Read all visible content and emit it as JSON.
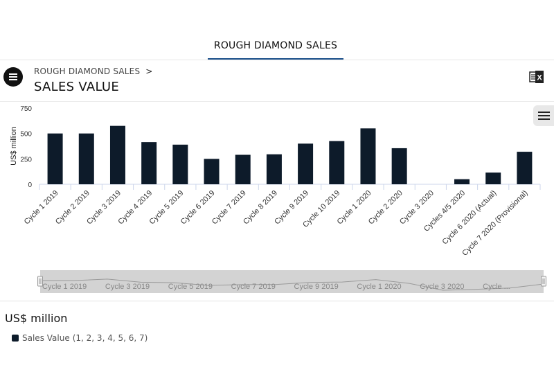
{
  "tabs": {
    "active_label": "ROUGH DIAMOND SALES"
  },
  "header": {
    "breadcrumb": "ROUGH DIAMOND SALES",
    "breadcrumb_separator": ">",
    "title": "SALES VALUE",
    "menu_icon": "hamburger-menu-icon",
    "export_icon": "excel-export-icon"
  },
  "chart_menu_icon": "hamburger-menu-icon",
  "colors": {
    "bar": "#0d1b2a",
    "tab_underline": "#1a4f8a",
    "navigator_mask": "#d3d3d3"
  },
  "chart_data": {
    "type": "bar",
    "ylabel": "US$ million",
    "ylim": [
      0,
      750
    ],
    "yticks": [
      0,
      250,
      500,
      750
    ],
    "categories": [
      "Cycle 1 2019",
      "Cycle 2 2019",
      "Cycle 3 2019",
      "Cycle 4 2019",
      "Cycle 5 2019",
      "Cycle 6 2019",
      "Cycle 7 2019",
      "Cycle 8 2019",
      "Cycle 9 2019",
      "Cycle 10 2019",
      "Cycle 1 2020",
      "Cycle 2 2020",
      "Cycle 3 2020",
      "Cycles 4/5 2020",
      "Cycle 6 2020 (Actual)",
      "Cycle 7 2020 (Provisional)"
    ],
    "series": [
      {
        "name": "Sales Value",
        "values": [
          500,
          500,
          575,
          415,
          390,
          250,
          290,
          295,
          400,
          425,
          550,
          355,
          0,
          50,
          115,
          320
        ]
      }
    ],
    "navigator_labels": [
      "Cycle 1 2019",
      "Cycle 3 2019",
      "Cycle 5 2019",
      "Cycle 7 2019",
      "Cycle 9 2019",
      "Cycle 1 2020",
      "Cycle 3 2020",
      "Cycle ..."
    ],
    "grid": false
  },
  "legend": {
    "title": "US$ million",
    "items": [
      {
        "label": "Sales Value",
        "series_list": "(1, 2, 3, 4, 5, 6, 7)"
      }
    ]
  }
}
